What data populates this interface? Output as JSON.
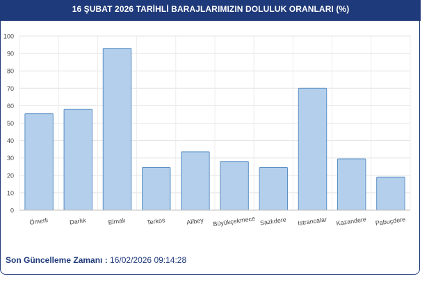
{
  "header": {
    "title": "16 ŞUBAT 2026 TARİHLİ BARAJLARIMIZIN DOLULUK ORANLARI (%)"
  },
  "footer": {
    "label": "Son Güncelleme Zamanı :",
    "value": "16/02/2026 09:14:28"
  },
  "colors": {
    "header_bg": "#1f3a7a",
    "bar_fill": "#b3cfeb",
    "bar_stroke": "#5b8fc4"
  },
  "chart_data": {
    "type": "bar",
    "categories": [
      "Ömerli",
      "Darlık",
      "Elmalı",
      "Terkos",
      "Alibey",
      "Büyükçekmece",
      "Sazlıdere",
      "Istrancalar",
      "Kazandere",
      "Pabuçdere"
    ],
    "values": [
      55.5,
      58,
      93,
      24.5,
      33.5,
      28,
      24.5,
      70,
      29.5,
      19
    ],
    "ylim": [
      0,
      100
    ],
    "yticks": [
      "0",
      "10",
      "20",
      "30",
      "40",
      "50",
      "60",
      "70",
      "80",
      "90",
      "100"
    ],
    "grid": true,
    "legend": "none"
  }
}
